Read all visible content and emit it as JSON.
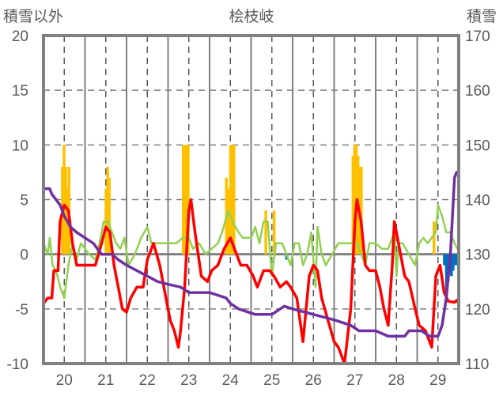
{
  "chart_data": {
    "type": "line",
    "title": "桧枝岐",
    "ylabel": "積雪以外",
    "y2label": "積雪",
    "xlim": [
      19.5,
      29.5
    ],
    "ylim": [
      -10,
      20
    ],
    "y2lim": [
      110,
      170
    ],
    "xticks": [
      20,
      21,
      22,
      23,
      24,
      25,
      26,
      27,
      28,
      29
    ],
    "xtick_labels": [
      "20",
      "21",
      "22",
      "23",
      "24",
      "25",
      "26",
      "27",
      "28",
      "29"
    ],
    "yticks": [
      -10,
      -5,
      0,
      5,
      10,
      15,
      20
    ],
    "ytick_labels": [
      "-10",
      "-5",
      "0",
      "5",
      "10",
      "15",
      "20"
    ],
    "y2ticks": [
      110,
      120,
      130,
      140,
      150,
      160,
      170
    ],
    "y2tick_labels": [
      "110",
      "120",
      "130",
      "140",
      "150",
      "160",
      "170"
    ],
    "grid": true,
    "colors": {
      "red": "#ff0000",
      "green": "#92d050",
      "purple": "#7030a0",
      "orange": "#ffc000",
      "blue": "#0070c0",
      "axis": "#808080"
    },
    "series": [
      {
        "name": "orange-bars",
        "kind": "bar",
        "axis": "left",
        "color": "#ffc000",
        "x": [
          19.95,
          19.99,
          20.03,
          20.07,
          20.11,
          21.0,
          21.04,
          21.08,
          22.86,
          22.9,
          22.94,
          22.98,
          23.9,
          23.94,
          24.0,
          24.04,
          24.08,
          24.85,
          25.05,
          26.95,
          26.99,
          27.03,
          27.07,
          27.11,
          27.15,
          27.95,
          28.9
        ],
        "y": [
          8,
          10,
          8,
          6,
          8,
          6,
          8,
          7,
          10,
          10,
          10,
          10,
          7,
          6,
          10,
          10,
          10,
          4,
          4,
          9,
          10,
          10,
          9,
          8,
          8,
          3,
          3
        ]
      },
      {
        "name": "blue-bars",
        "kind": "bar",
        "axis": "left",
        "color": "#0070c0",
        "x": [
          25.35,
          29.15,
          29.2,
          29.24,
          29.28,
          29.32,
          29.36,
          29.4,
          29.44
        ],
        "y": [
          -0.5,
          -1,
          -3.5,
          -2.5,
          -1.5,
          -2,
          -1.5,
          -1,
          -1
        ]
      },
      {
        "name": "green-line",
        "kind": "line",
        "axis": "left",
        "color": "#92d050",
        "x": [
          19.5,
          19.55,
          19.6,
          19.65,
          19.72,
          19.8,
          19.9,
          20.0,
          20.1,
          20.2,
          20.3,
          20.4,
          20.5,
          20.6,
          20.75,
          20.85,
          20.95,
          21.05,
          21.15,
          21.25,
          21.35,
          21.45,
          21.55,
          21.7,
          21.85,
          22.0,
          22.1,
          22.25,
          22.4,
          22.55,
          22.7,
          22.85,
          23.0,
          23.1,
          23.25,
          23.4,
          23.55,
          23.7,
          23.8,
          23.95,
          24.05,
          24.2,
          24.3,
          24.5,
          24.6,
          24.7,
          24.8,
          24.9,
          25.0,
          25.1,
          25.25,
          25.35,
          25.45,
          25.55,
          25.65,
          25.75,
          25.85,
          25.95,
          26.05,
          26.1,
          26.2,
          26.3,
          26.45,
          26.6,
          26.75,
          26.9,
          27.05,
          27.15,
          27.25,
          27.35,
          27.5,
          27.65,
          27.8,
          27.95,
          28.0,
          28.05,
          28.15,
          28.3,
          28.45,
          28.55,
          28.65,
          28.75,
          28.85,
          28.95,
          29.0,
          29.1,
          29.2,
          29.3,
          29.4,
          29.5
        ],
        "y": [
          1,
          0.5,
          0,
          1.5,
          -1,
          -1.5,
          -3,
          -4,
          -1,
          1,
          -0.5,
          1,
          0.5,
          0,
          -0.5,
          1,
          3,
          3,
          2,
          1,
          0.5,
          1.5,
          -1,
          0,
          1.5,
          2.5,
          1,
          1,
          1,
          1,
          1,
          1.5,
          1.5,
          0.5,
          1,
          0,
          0.5,
          1,
          2,
          4,
          3,
          2,
          1.5,
          1.5,
          2.5,
          1,
          3,
          3,
          -2,
          1,
          1,
          0,
          -1,
          1,
          1,
          -1,
          0,
          2,
          -3,
          2.5,
          0,
          -1,
          0,
          1,
          1,
          1,
          1,
          0,
          -1,
          1,
          1,
          0.5,
          0.5,
          2,
          -2,
          1,
          1,
          0,
          -1,
          1,
          1.5,
          1,
          1.5,
          2,
          4.5,
          3.5,
          2,
          2,
          1,
          0.3
        ]
      },
      {
        "name": "red-line",
        "kind": "line",
        "axis": "left",
        "color": "#ff0000",
        "x": [
          19.5,
          19.6,
          19.7,
          19.75,
          19.85,
          19.9,
          20.0,
          20.1,
          20.2,
          20.3,
          20.5,
          20.6,
          20.75,
          20.9,
          21.0,
          21.1,
          21.2,
          21.3,
          21.4,
          21.5,
          21.6,
          21.75,
          21.9,
          22.0,
          22.15,
          22.3,
          22.4,
          22.55,
          22.65,
          22.75,
          22.8,
          22.9,
          23.0,
          23.05,
          23.15,
          23.3,
          23.45,
          23.55,
          23.7,
          23.85,
          24.0,
          24.1,
          24.25,
          24.4,
          24.55,
          24.65,
          24.8,
          24.95,
          25.05,
          25.2,
          25.35,
          25.45,
          25.6,
          25.75,
          25.9,
          26.0,
          26.1,
          26.2,
          26.35,
          26.5,
          26.6,
          26.75,
          26.9,
          27.0,
          27.05,
          27.15,
          27.25,
          27.35,
          27.5,
          27.6,
          27.7,
          27.8,
          27.9,
          27.95,
          28.1,
          28.2,
          28.3,
          28.45,
          28.55,
          28.7,
          28.85,
          28.95,
          29.05,
          29.15,
          29.25,
          29.4,
          29.45,
          29.5
        ],
        "y": [
          -4.5,
          -4,
          -4,
          -1.5,
          -1.5,
          3,
          4.5,
          4,
          1,
          -1,
          -1,
          -1,
          -1,
          1,
          2.5,
          2,
          -1,
          -3,
          -5,
          -5.3,
          -4,
          -3,
          -3,
          -0.5,
          1,
          -1,
          -3,
          -6,
          -7,
          -8.5,
          -7,
          -3,
          4,
          5,
          2,
          -2,
          -2.5,
          -1.5,
          -1,
          0.5,
          1.5,
          0.5,
          -1,
          -1,
          -2,
          -3,
          -1.5,
          -1.5,
          -2,
          -3,
          -2.5,
          -3,
          -4,
          -8,
          -2,
          -1,
          -1.5,
          -4,
          -6,
          -8,
          -8.5,
          -10,
          -5,
          3,
          5,
          3,
          -1,
          -1.5,
          -1.5,
          -3,
          -5,
          -6.5,
          -1,
          3,
          0,
          -2,
          -2.5,
          -5,
          -6.5,
          -7,
          -8.5,
          -2,
          -1,
          -3.5,
          -4.3,
          -4.4,
          -4.2,
          -4.5
        ]
      },
      {
        "name": "purple-line",
        "kind": "line",
        "axis": "right",
        "color": "#7030a0",
        "x": [
          19.5,
          19.65,
          19.7,
          19.8,
          19.9,
          20.0,
          20.15,
          20.3,
          20.5,
          20.7,
          20.8,
          20.9,
          21.15,
          21.3,
          21.5,
          21.75,
          22.0,
          22.25,
          22.5,
          22.8,
          23.0,
          23.5,
          23.9,
          24.0,
          24.2,
          24.6,
          25.0,
          25.1,
          25.3,
          25.5,
          25.75,
          26.0,
          26.5,
          26.9,
          27.1,
          27.5,
          27.8,
          28.0,
          28.2,
          28.3,
          28.6,
          28.8,
          29.0,
          29.1,
          29.2,
          29.3,
          29.4,
          29.45,
          29.5
        ],
        "y": [
          142,
          142,
          141,
          140,
          139,
          137,
          135,
          134,
          133,
          132,
          131,
          130,
          130,
          129,
          128,
          127,
          126,
          125,
          124.5,
          124,
          123,
          123,
          122,
          121,
          120,
          119,
          119,
          119.5,
          120.5,
          120,
          119.5,
          119,
          118,
          117,
          116,
          116,
          115,
          115,
          115,
          116,
          116,
          115,
          115,
          117,
          122,
          130,
          144,
          145,
          145
        ]
      }
    ]
  }
}
